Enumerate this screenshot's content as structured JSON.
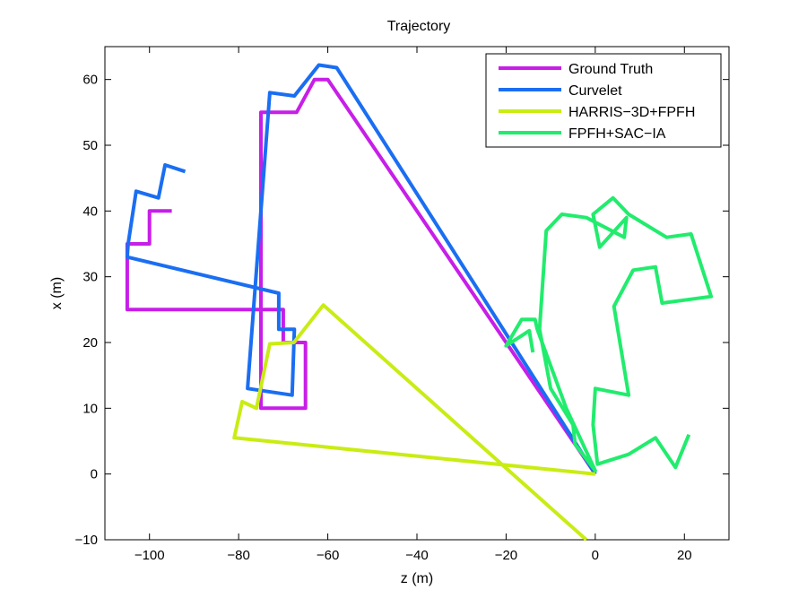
{
  "chart_data": {
    "type": "line",
    "title": "Trajectory",
    "xlabel": "z (m)",
    "ylabel": "x (m)",
    "xlim": [
      -110,
      30
    ],
    "ylim": [
      -10,
      65
    ],
    "xticks": [
      -100,
      -80,
      -60,
      -40,
      -20,
      0,
      20
    ],
    "yticks": [
      -10,
      0,
      10,
      20,
      30,
      40,
      50,
      60
    ],
    "xtick_labels": [
      "−100",
      "−80",
      "−60",
      "−40",
      "−20",
      "0",
      "20"
    ],
    "ytick_labels": [
      "−10",
      "0",
      "10",
      "20",
      "30",
      "40",
      "50",
      "60"
    ],
    "grid": false,
    "legend_position": "top-right",
    "series": [
      {
        "name": "Ground Truth",
        "color": "#c71ee8",
        "points": [
          [
            0,
            0
          ],
          [
            -60,
            60
          ],
          [
            -63,
            60
          ],
          [
            -67,
            55
          ],
          [
            -75,
            55
          ],
          [
            -75,
            10
          ],
          [
            -65,
            10
          ],
          [
            -65,
            20
          ],
          [
            -70,
            20
          ],
          [
            -70,
            25
          ],
          [
            -105,
            25
          ],
          [
            -105,
            35
          ],
          [
            -100,
            35
          ],
          [
            -100,
            40
          ],
          [
            -95,
            40
          ]
        ]
      },
      {
        "name": "Curvelet",
        "color": "#1a6ef2",
        "points": [
          [
            0,
            0
          ],
          [
            -58,
            61.8
          ],
          [
            -62,
            62.2
          ],
          [
            -67.5,
            57.5
          ],
          [
            -73,
            58
          ],
          [
            -78,
            13
          ],
          [
            -68,
            12
          ],
          [
            -67.5,
            22
          ],
          [
            -71,
            22
          ],
          [
            -71,
            27.5
          ],
          [
            -105,
            33
          ],
          [
            -104.8,
            35
          ],
          [
            -103,
            43
          ],
          [
            -98,
            42
          ],
          [
            -96.5,
            47
          ],
          [
            -92,
            46
          ]
        ]
      },
      {
        "name": "HARRIS−3D+FPFH",
        "color": "#c9ec14",
        "points": [
          [
            -2,
            -10
          ],
          [
            -61,
            25.7
          ],
          [
            -67.6,
            20
          ],
          [
            -73,
            19.8
          ],
          [
            -76,
            10
          ],
          [
            -79.2,
            11
          ],
          [
            -81,
            5.5
          ],
          [
            0,
            0
          ]
        ]
      },
      {
        "name": "FPFH+SAC−IA",
        "color": "#21ec6d",
        "points": [
          [
            21,
            6
          ],
          [
            18,
            1
          ],
          [
            13.5,
            5.5
          ],
          [
            7.5,
            3
          ],
          [
            0.5,
            1.5
          ],
          [
            -0.5,
            7.5
          ],
          [
            0,
            13
          ],
          [
            7.5,
            12
          ],
          [
            4.2,
            25.5
          ],
          [
            8.5,
            31
          ],
          [
            13.5,
            31.5
          ],
          [
            15,
            26
          ],
          [
            26,
            27
          ],
          [
            21.5,
            36.5
          ],
          [
            16,
            36
          ],
          [
            7.5,
            39.5
          ],
          [
            4,
            42
          ],
          [
            -0.5,
            39.5
          ],
          [
            1,
            34.5
          ],
          [
            7,
            39
          ],
          [
            6.5,
            36
          ],
          [
            -2,
            39
          ],
          [
            -7.5,
            39.5
          ],
          [
            -11,
            37
          ],
          [
            -12.5,
            22
          ],
          [
            -10,
            13
          ],
          [
            -5,
            7.5
          ],
          [
            -4.5,
            4.5
          ],
          [
            0,
            0.5
          ],
          [
            -6.5,
            10
          ],
          [
            -13,
            22
          ],
          [
            -13.5,
            23.5
          ],
          [
            -16.5,
            23.5
          ],
          [
            -20,
            19.5
          ],
          [
            -14.8,
            21.8
          ],
          [
            -14,
            18.5
          ]
        ]
      }
    ]
  }
}
